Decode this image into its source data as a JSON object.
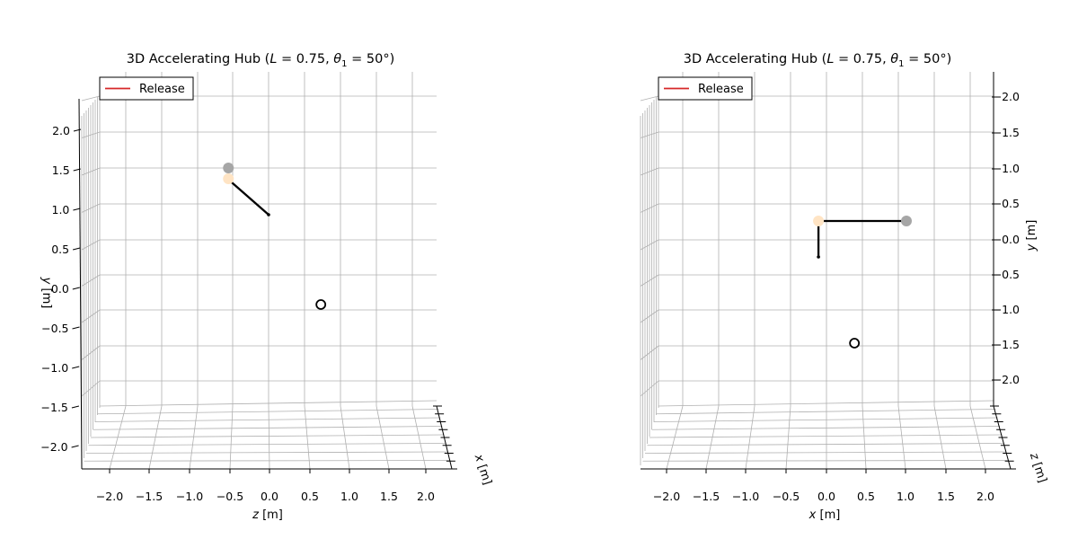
{
  "figure": {
    "panels": [
      {
        "title_main": "3D Accelerating Hub (",
        "title_var1": "L",
        "title_eq1": " = 0.75, ",
        "title_var2": "θ",
        "title_sub": "1",
        "title_eq2": " = 50°)",
        "xlabel_var": "z",
        "xlabel_unit": " [m]",
        "ylabel_var": "y",
        "ylabel_unit": " [m]",
        "depth_var": "x",
        "depth_unit": " [m]",
        "legend": "Release",
        "xticks": [
          "−2.0",
          "−1.5",
          "−1.0",
          "−0.5",
          "0.0",
          "0.5",
          "1.0",
          "1.5",
          "2.0"
        ],
        "yticks": [
          "2.0",
          "1.5",
          "1.0",
          "0.5",
          "0.0",
          "−0.5",
          "−1.0",
          "−1.5",
          "−2.0"
        ]
      },
      {
        "title_main": "3D Accelerating Hub (",
        "title_var1": "L",
        "title_eq1": " = 0.75, ",
        "title_var2": "θ",
        "title_sub": "1",
        "title_eq2": " = 50°)",
        "xlabel_var": "x",
        "xlabel_unit": " [m]",
        "ylabel_var": "y",
        "ylabel_unit": " [m]",
        "depth_var": "z",
        "depth_unit": " [m]",
        "legend": "Release",
        "xticks": [
          "−2.0",
          "−1.5",
          "−1.0",
          "−0.5",
          "0.0",
          "0.5",
          "1.0",
          "1.5",
          "2.0"
        ],
        "yticks": [
          "2.0",
          "1.5",
          "1.0",
          "0.5",
          "0.0",
          "−0.5",
          "−1.0",
          "−1.5",
          "−2.0"
        ]
      }
    ]
  },
  "chart_data": [
    {
      "type": "scatter",
      "view": "z-y projection (x into page)",
      "title": "3D Accelerating Hub (L = 0.75, θ1 = 50°)",
      "xlabel": "z [m]",
      "ylabel": "y [m]",
      "zlabel": "x [m]",
      "xlim": [
        -2.3,
        2.3
      ],
      "ylim": [
        -2.3,
        2.3
      ],
      "grid": true,
      "legend_position": "top-left",
      "series": [
        {
          "name": "Release",
          "color": "#d62728",
          "points": []
        }
      ],
      "elements": {
        "hub": {
          "x": -0.5,
          "y": 1.0,
          "color": "#a6a6a6"
        },
        "joint": {
          "x": -0.5,
          "y": 0.85,
          "color": "#ffe4c4"
        },
        "arm": [
          [
            -0.48,
            0.82
          ],
          [
            0.0,
            0.35
          ]
        ],
        "arm_tip": {
          "x": 0.0,
          "y": 0.35
        },
        "target": {
          "x": 0.65,
          "y": -0.9
        }
      }
    },
    {
      "type": "scatter",
      "view": "x-y projection (z into page)",
      "title": "3D Accelerating Hub (L = 0.75, θ1 = 50°)",
      "xlabel": "x [m]",
      "ylabel": "y [m]",
      "zlabel": "z [m]",
      "xlim": [
        -2.3,
        2.3
      ],
      "ylim": [
        -2.3,
        2.3
      ],
      "grid": true,
      "legend_position": "top-left",
      "series": [
        {
          "name": "Release",
          "color": "#d62728",
          "points": []
        }
      ],
      "elements": {
        "hub": {
          "x": 1.0,
          "y": 0.75,
          "color": "#a6a6a6"
        },
        "joint": {
          "x": -0.1,
          "y": 0.75,
          "color": "#ffe4c4"
        },
        "arm": [
          [
            1.0,
            0.75
          ],
          [
            -0.1,
            0.75
          ],
          [
            -0.1,
            0.25
          ]
        ],
        "arm_tip": {
          "x": -0.1,
          "y": 0.25
        },
        "target": {
          "x": 0.35,
          "y": -0.95
        }
      }
    }
  ]
}
